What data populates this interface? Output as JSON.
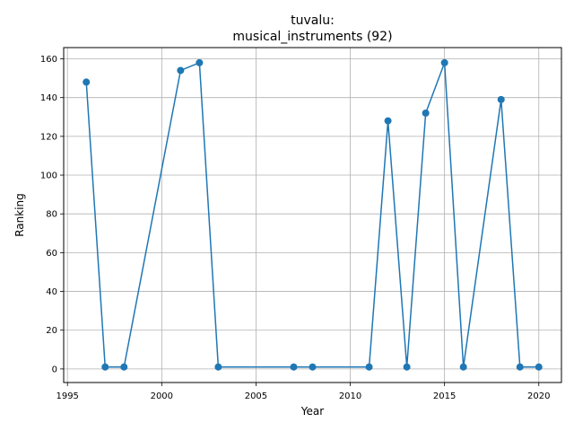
{
  "chart_data": {
    "type": "line",
    "title_line1": "tuvalu:",
    "title_line2": "musical_instruments (92)",
    "xlabel": "Year",
    "ylabel": "Ranking",
    "xlim": [
      1994.8,
      2021.2
    ],
    "ylim": [
      -7.0,
      165.8
    ],
    "xticks": [
      1995,
      2000,
      2005,
      2010,
      2015,
      2020
    ],
    "yticks": [
      0,
      20,
      40,
      60,
      80,
      100,
      120,
      140,
      160
    ],
    "grid": true,
    "color": "#1f77b4",
    "marker": "circle",
    "x": [
      1996,
      1997,
      1998,
      2001,
      2002,
      2003,
      2007,
      2008,
      2011,
      2012,
      2013,
      2014,
      2015,
      2016,
      2018,
      2019,
      2020
    ],
    "y": [
      148,
      1,
      1,
      154,
      158,
      1,
      1,
      1,
      1,
      128,
      1,
      132,
      158,
      1,
      139,
      1,
      1
    ]
  }
}
